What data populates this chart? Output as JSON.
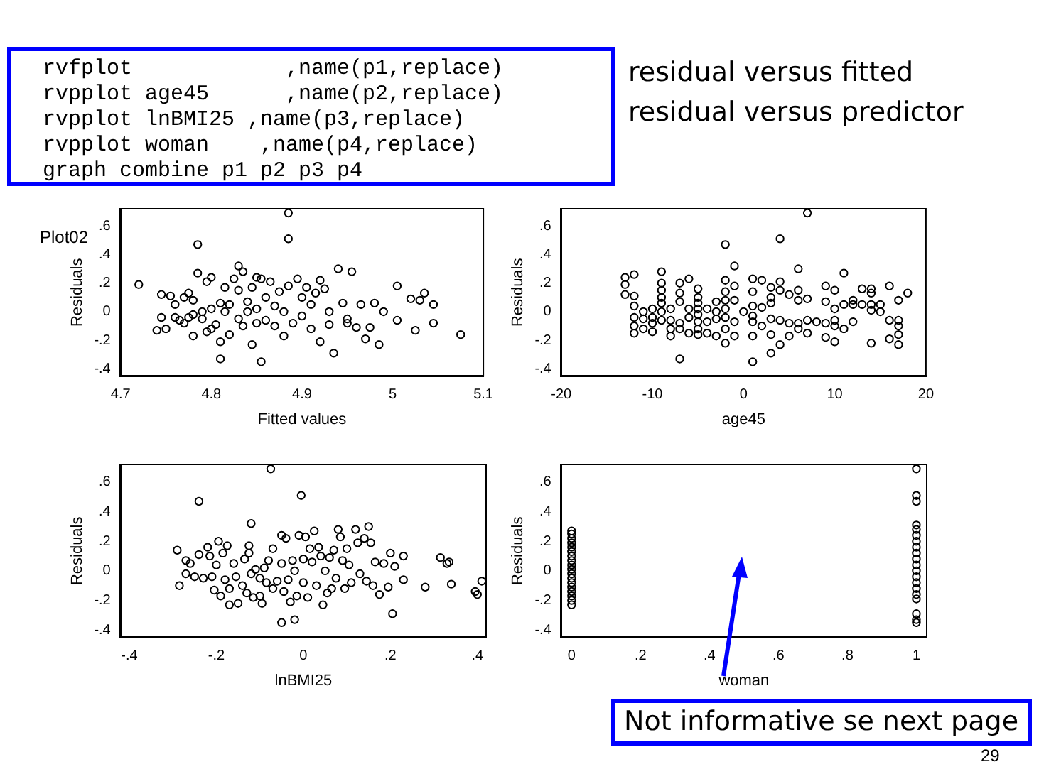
{
  "chart_data": [
    {
      "type": "scatter",
      "title": "Plot02",
      "xlabel": "Fitted values",
      "ylabel": "Residuals",
      "color": "#000000",
      "marker": "circle",
      "annotations": [
        "rvfplot            ,name(p1,replace)",
        "rvpplot age45      ,name(p2,replace)",
        "rvpplot lnBMI25 ,name(p3,replace)",
        "rvpplot woman    ,name(p4,replace)",
        "graph combine p1 p2 p3 p4",
        "residual versus fitted",
        "residual versus predictor"
      ],
      "xlim": [
        4.7,
        5.1
      ],
      "ylim": [
        -0.45,
        0.72
      ],
      "xticks": [
        4.7,
        4.8,
        4.9,
        5,
        5.1
      ],
      "yticks": [
        {
          "value": -0.4,
          "label": "-.4"
        },
        {
          "value": -0.2,
          "label": "-.2"
        },
        {
          "value": 0,
          "label": "0"
        },
        {
          "value": 0.2,
          "label": ".2"
        },
        {
          "value": 0.4,
          "label": ".4"
        },
        {
          "value": 0.6,
          "label": ".6"
        }
      ],
      "x": [
        4.72,
        4.745,
        4.745,
        4.74,
        4.75,
        4.755,
        4.76,
        4.765,
        4.77,
        4.775,
        4.775,
        4.78,
        4.78,
        4.785,
        4.785,
        4.79,
        4.795,
        4.795,
        4.8,
        4.8,
        4.805,
        4.81,
        4.81,
        4.81,
        4.815,
        4.82,
        4.825,
        4.83,
        4.83,
        4.835,
        4.835,
        4.84,
        4.845,
        4.845,
        4.85,
        4.85,
        4.855,
        4.855,
        4.86,
        4.865,
        4.87,
        4.875,
        4.88,
        4.885,
        4.885,
        4.885,
        4.89,
        4.895,
        4.9,
        4.905,
        4.91,
        4.915,
        4.92,
        4.92,
        4.925,
        4.93,
        4.935,
        4.94,
        4.945,
        4.95,
        4.955,
        4.96,
        4.965,
        4.97,
        4.975,
        4.98,
        4.985,
        4.99,
        5.005,
        5.005,
        5.02,
        5.025,
        5.03,
        5.035,
        5.045,
        5.045,
        5.075,
        4.76,
        4.77,
        4.78,
        4.79,
        4.8,
        4.815,
        4.82,
        4.83,
        4.84,
        4.85,
        4.86,
        4.87,
        4.88,
        4.9,
        4.91,
        4.93,
        4.95
      ],
      "values": [
        0.19,
        0.12,
        -0.04,
        -0.13,
        -0.12,
        0.11,
        0.05,
        -0.06,
        0.1,
        0.13,
        -0.04,
        -0.17,
        0.08,
        0.47,
        0.27,
        -0.05,
        0.21,
        -0.14,
        0.24,
        0.02,
        -0.09,
        0.06,
        -0.21,
        -0.33,
        0.17,
        -0.16,
        0.23,
        0.32,
        0.15,
        0.28,
        -0.1,
        0.07,
        -0.23,
        0.17,
        0.24,
        0.02,
        -0.35,
        0.23,
        -0.06,
        0.21,
        0.04,
        0.14,
        -0.17,
        0.69,
        0.51,
        0.18,
        -0.08,
        0.23,
        -0.03,
        0.17,
        -0.12,
        0.13,
        0.22,
        -0.21,
        0.16,
        -0.09,
        -0.29,
        0.3,
        0.06,
        -0.08,
        0.28,
        -0.11,
        0.05,
        -0.19,
        -0.11,
        0.06,
        -0.23,
        0,
        0.18,
        -0.06,
        0.09,
        -0.13,
        0.08,
        0.13,
        0.05,
        -0.08,
        -0.16,
        -0.04,
        -0.08,
        -0.02,
        0,
        -0.12,
        0,
        0.05,
        -0.05,
        0,
        -0.08,
        0.1,
        -0.1,
        0,
        0.1,
        0.05,
        0,
        -0.05
      ]
    },
    {
      "type": "scatter",
      "xlabel": "age45",
      "ylabel": "Residuals",
      "color": "#000000",
      "marker": "circle",
      "xlim": [
        -20,
        20
      ],
      "ylim": [
        -0.45,
        0.72
      ],
      "xticks": [
        -20,
        -10,
        {
          "value": 0,
          "label": "0"
        },
        10,
        20
      ],
      "yticks": [
        {
          "value": -0.4,
          "label": "-.4"
        },
        {
          "value": -0.2,
          "label": "-.2"
        },
        {
          "value": 0,
          "label": "0"
        },
        {
          "value": 0.2,
          "label": ".2"
        },
        {
          "value": 0.4,
          "label": ".4"
        },
        {
          "value": 0.6,
          "label": ".6"
        }
      ],
      "x": [
        -13,
        -13,
        -13,
        -12,
        -12,
        -12,
        -12,
        -12,
        -12,
        -11,
        -11,
        -11,
        -10,
        -10,
        -10,
        -10,
        -9,
        -9,
        -9,
        -9,
        -9,
        -9,
        -9,
        -8,
        -8,
        -8,
        -8,
        -7,
        -7,
        -7,
        -7,
        -7,
        -7,
        -6,
        -6,
        -6,
        -6,
        -5,
        -5,
        -5,
        -5,
        -5,
        -5,
        -5,
        -5,
        -4,
        -4,
        -4,
        -3,
        -3,
        -3,
        -3,
        -2,
        -2,
        -2,
        -2,
        -2,
        -2,
        -2,
        -2,
        -1,
        -1,
        -1,
        -1,
        -1,
        0,
        1,
        1,
        1,
        1,
        1,
        1,
        1,
        2,
        2,
        2,
        3,
        3,
        3,
        3,
        3,
        3,
        4,
        4,
        4,
        4,
        4,
        5,
        5,
        5,
        6,
        6,
        6,
        6,
        6,
        7,
        7,
        7,
        7,
        8,
        9,
        9,
        9,
        9,
        10,
        10,
        10,
        10,
        10,
        11,
        11,
        11,
        12,
        12,
        12,
        13,
        13,
        14,
        14,
        14,
        14,
        14,
        15,
        15,
        16,
        16,
        16,
        17,
        17,
        17,
        17,
        17,
        18
      ],
      "values": [
        0.24,
        0.19,
        0.12,
        0.26,
        0.11,
        0.04,
        -0.04,
        -0.1,
        -0.15,
        0,
        -0.05,
        -0.12,
        0.02,
        -0.04,
        -0.08,
        -0.14,
        0.28,
        0.2,
        0.15,
        0.1,
        0.06,
        0,
        -0.06,
        0.02,
        -0.06,
        -0.12,
        -0.17,
        0.2,
        0.13,
        0.07,
        -0.08,
        -0.12,
        -0.33,
        0.23,
        0.02,
        -0.04,
        -0.15,
        0.16,
        0.1,
        0.06,
        0.02,
        -0.02,
        -0.07,
        -0.12,
        -0.16,
        0.02,
        -0.07,
        -0.15,
        0.07,
        0,
        -0.05,
        -0.17,
        0.47,
        0.22,
        0.14,
        0.08,
        0.02,
        -0.04,
        -0.12,
        -0.22,
        0.32,
        0.18,
        0.08,
        -0.07,
        -0.17,
        0,
        0.23,
        0.14,
        0.04,
        -0.03,
        -0.07,
        -0.17,
        -0.35,
        0.22,
        0.03,
        -0.1,
        0.17,
        0.1,
        0.06,
        -0.05,
        -0.16,
        -0.29,
        0.51,
        0.21,
        0.15,
        -0.06,
        -0.23,
        0.12,
        -0.08,
        -0.17,
        0.3,
        0.15,
        0.08,
        -0.08,
        -0.12,
        0.69,
        0.09,
        -0.06,
        -0.15,
        -0.07,
        0.18,
        0.07,
        -0.08,
        -0.18,
        0.15,
        0.02,
        -0.06,
        -0.1,
        -0.21,
        0.27,
        0.05,
        -0.12,
        0.08,
        0.05,
        -0.07,
        0.16,
        0.05,
        0.16,
        0.13,
        0.05,
        0.01,
        -0.22,
        0.05,
        0,
        0.18,
        -0.06,
        -0.19,
        0.08,
        -0.06,
        -0.1,
        -0.16,
        -0.23,
        0.13
      ]
    },
    {
      "type": "scatter",
      "xlabel": "lnBMI25",
      "ylabel": "Residuals",
      "color": "#000000",
      "marker": "circle",
      "xlim": [
        -0.42,
        0.42
      ],
      "ylim": [
        -0.45,
        0.72
      ],
      "xticks": [
        {
          "value": -0.4,
          "label": "-.4"
        },
        {
          "value": -0.2,
          "label": "-.2"
        },
        {
          "value": 0,
          "label": "0"
        },
        {
          "value": 0.2,
          "label": ".2"
        },
        {
          "value": 0.4,
          "label": ".4"
        }
      ],
      "yticks": [
        {
          "value": -0.4,
          "label": "-.4"
        },
        {
          "value": -0.2,
          "label": "-.2"
        },
        {
          "value": 0,
          "label": "0"
        },
        {
          "value": 0.2,
          "label": ".2"
        },
        {
          "value": 0.4,
          "label": ".4"
        },
        {
          "value": 0.6,
          "label": ".6"
        }
      ],
      "x": [
        -0.29,
        -0.285,
        -0.27,
        -0.27,
        -0.26,
        -0.25,
        -0.24,
        -0.24,
        -0.23,
        -0.22,
        -0.215,
        -0.21,
        -0.205,
        -0.2,
        -0.195,
        -0.19,
        -0.185,
        -0.18,
        -0.175,
        -0.17,
        -0.17,
        -0.16,
        -0.155,
        -0.15,
        -0.14,
        -0.135,
        -0.13,
        -0.125,
        -0.125,
        -0.12,
        -0.12,
        -0.115,
        -0.11,
        -0.1,
        -0.1,
        -0.095,
        -0.09,
        -0.085,
        -0.08,
        -0.075,
        -0.07,
        -0.07,
        -0.06,
        -0.05,
        -0.05,
        -0.05,
        -0.045,
        -0.04,
        -0.035,
        -0.03,
        -0.025,
        -0.02,
        -0.02,
        -0.015,
        -0.01,
        -0.005,
        0,
        0,
        0.005,
        0.01,
        0.015,
        0.02,
        0.025,
        0.03,
        0.035,
        0.04,
        0.045,
        0.05,
        0.055,
        0.06,
        0.065,
        0.07,
        0.075,
        0.08,
        0.085,
        0.09,
        0.095,
        0.1,
        0.105,
        0.11,
        0.12,
        0.125,
        0.13,
        0.14,
        0.145,
        0.15,
        0.155,
        0.16,
        0.165,
        0.175,
        0.185,
        0.195,
        0.2,
        0.205,
        0.21,
        0.23,
        0.23,
        0.28,
        0.315,
        0.33,
        0.335,
        0.34,
        0.395,
        0.4,
        0.41
      ],
      "values": [
        0.14,
        -0.1,
        0.07,
        -0.02,
        0.05,
        -0.04,
        0.47,
        0.11,
        -0.05,
        0.16,
        0.1,
        -0.04,
        -0.13,
        0.04,
        0.2,
        -0.17,
        0.12,
        -0.06,
        0.17,
        -0.12,
        -0.23,
        0.05,
        -0.04,
        -0.22,
        -0.1,
        0.08,
        -0.15,
        0.17,
        0.12,
        0.32,
        -0.02,
        -0.18,
        0.01,
        -0.05,
        -0.17,
        -0.22,
        0.02,
        -0.08,
        0.07,
        0.69,
        0.15,
        -0.12,
        -0.07,
        0.24,
        0.05,
        -0.35,
        -0.14,
        0.22,
        -0.06,
        -0.21,
        0.07,
        -0.33,
        0,
        -0.17,
        0.24,
        0.51,
        0.08,
        -0.08,
        0.23,
        -0.18,
        0.15,
        0.06,
        0.27,
        -0.1,
        0.16,
        0.1,
        -0.23,
        0,
        -0.15,
        0.09,
        -0.12,
        0.14,
        -0.05,
        0.28,
        0.23,
        0.07,
        -0.12,
        0.15,
        0.04,
        -0.08,
        0.28,
        0.19,
        -0.02,
        0.22,
        -0.07,
        0.3,
        0.19,
        -0.1,
        0.06,
        -0.16,
        0.05,
        -0.11,
        0.12,
        -0.29,
        0.03,
        0.1,
        -0.06,
        -0.11,
        0.09,
        0.05,
        0.06,
        -0.09,
        -0.14,
        -0.16,
        -0.07
      ]
    },
    {
      "type": "scatter",
      "xlabel": "woman",
      "ylabel": "Residuals",
      "color": "#000000",
      "marker": "circle",
      "annotations": [
        "Not informative se next page",
        "29"
      ],
      "xlim": [
        -0.03,
        1.03
      ],
      "ylim": [
        -0.45,
        0.72
      ],
      "xticks": [
        {
          "value": 0,
          "label": "0"
        },
        {
          "value": 0.2,
          "label": ".2"
        },
        {
          "value": 0.4,
          "label": ".4"
        },
        {
          "value": 0.6,
          "label": ".6"
        },
        {
          "value": 0.8,
          "label": ".8"
        },
        1
      ],
      "yticks": [
        {
          "value": -0.4,
          "label": "-.4"
        },
        {
          "value": -0.2,
          "label": "-.2"
        },
        {
          "value": 0,
          "label": "0"
        },
        {
          "value": 0.2,
          "label": ".2"
        },
        {
          "value": 0.4,
          "label": ".4"
        },
        {
          "value": 0.6,
          "label": ".6"
        }
      ],
      "x": [
        0,
        0,
        0,
        0,
        0,
        0,
        0,
        0,
        0,
        0,
        0,
        0,
        0,
        0,
        0,
        0,
        0,
        0,
        1,
        1,
        1,
        1,
        1,
        1,
        1,
        1,
        1,
        1,
        1,
        1,
        1,
        1,
        1,
        1,
        1,
        1,
        1,
        1
      ],
      "values": [
        -0.23,
        -0.2,
        -0.17,
        -0.14,
        -0.11,
        -0.08,
        -0.05,
        -0.02,
        0.01,
        0.04,
        0.07,
        0.1,
        0.13,
        0.16,
        0.19,
        0.22,
        0.25,
        0.27,
        0.69,
        0.51,
        0.47,
        0.31,
        0.28,
        0.24,
        0.2,
        0.16,
        0.12,
        0.08,
        0.04,
        0,
        -0.04,
        -0.08,
        -0.12,
        -0.16,
        -0.19,
        -0.29,
        -0.33,
        -0.35
      ]
    }
  ]
}
